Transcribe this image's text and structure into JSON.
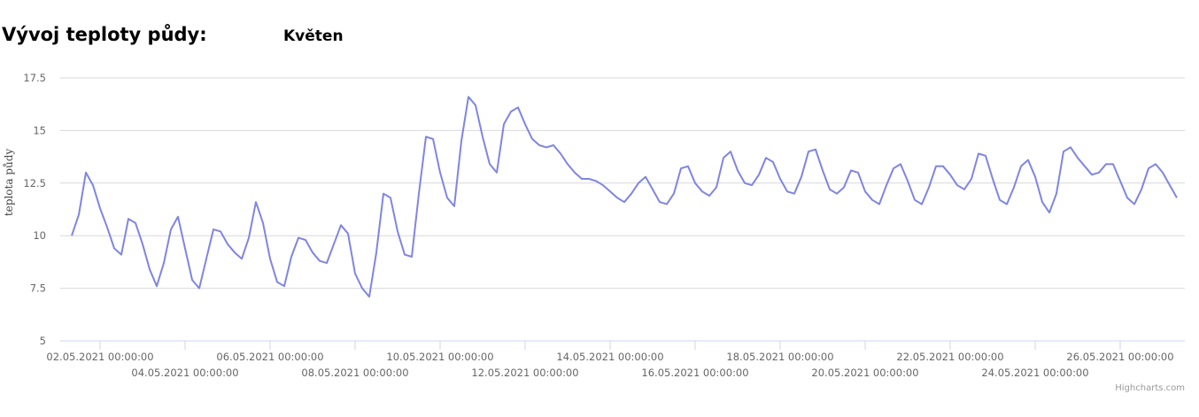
{
  "chart_data": {
    "type": "line",
    "title": "Vývoj teploty půdy:",
    "subtitle": "Květen",
    "y_label": "teplota půdy",
    "credits": "Highcharts.com",
    "color": "#7f85e3",
    "grid": true,
    "ylim": [
      5,
      17.5
    ],
    "yticks": [
      5,
      7.5,
      10,
      12.5,
      15,
      17.5
    ],
    "xlim": [
      "01.05.2021 01:30:00",
      "27.05.2021 12:30:00"
    ],
    "xticks": [
      "02.05.2021 00:00:00",
      "04.05.2021 00:00:00",
      "06.05.2021 00:00:00",
      "08.05.2021 00:00:00",
      "10.05.2021 00:00:00",
      "12.05.2021 00:00:00",
      "14.05.2021 00:00:00",
      "16.05.2021 00:00:00",
      "18.05.2021 00:00:00",
      "20.05.2021 00:00:00",
      "22.05.2021 00:00:00",
      "24.05.2021 00:00:00",
      "26.05.2021 00:00:00"
    ],
    "x": [
      "01.05.2021 08:00:00",
      "01.05.2021 12:00:00",
      "01.05.2021 16:00:00",
      "01.05.2021 20:00:00",
      "02.05.2021 00:00:00",
      "02.05.2021 04:00:00",
      "02.05.2021 08:00:00",
      "02.05.2021 12:00:00",
      "02.05.2021 16:00:00",
      "02.05.2021 20:00:00",
      "03.05.2021 00:00:00",
      "03.05.2021 04:00:00",
      "03.05.2021 08:00:00",
      "03.05.2021 12:00:00",
      "03.05.2021 16:00:00",
      "03.05.2021 20:00:00",
      "04.05.2021 00:00:00",
      "04.05.2021 04:00:00",
      "04.05.2021 08:00:00",
      "04.05.2021 12:00:00",
      "04.05.2021 16:00:00",
      "04.05.2021 20:00:00",
      "05.05.2021 00:00:00",
      "05.05.2021 04:00:00",
      "05.05.2021 08:00:00",
      "05.05.2021 12:00:00",
      "05.05.2021 16:00:00",
      "05.05.2021 20:00:00",
      "06.05.2021 00:00:00",
      "06.05.2021 04:00:00",
      "06.05.2021 08:00:00",
      "06.05.2021 12:00:00",
      "06.05.2021 16:00:00",
      "06.05.2021 20:00:00",
      "07.05.2021 00:00:00",
      "07.05.2021 04:00:00",
      "07.05.2021 08:00:00",
      "07.05.2021 12:00:00",
      "07.05.2021 16:00:00",
      "07.05.2021 20:00:00",
      "08.05.2021 00:00:00",
      "08.05.2021 04:00:00",
      "08.05.2021 08:00:00",
      "08.05.2021 12:00:00",
      "08.05.2021 16:00:00",
      "08.05.2021 20:00:00",
      "09.05.2021 00:00:00",
      "09.05.2021 04:00:00",
      "09.05.2021 08:00:00",
      "09.05.2021 12:00:00",
      "09.05.2021 16:00:00",
      "09.05.2021 20:00:00",
      "10.05.2021 00:00:00",
      "10.05.2021 04:00:00",
      "10.05.2021 08:00:00",
      "10.05.2021 12:00:00",
      "10.05.2021 16:00:00",
      "10.05.2021 20:00:00",
      "11.05.2021 00:00:00",
      "11.05.2021 04:00:00",
      "11.05.2021 08:00:00",
      "11.05.2021 12:00:00",
      "11.05.2021 16:00:00",
      "11.05.2021 20:00:00",
      "12.05.2021 00:00:00",
      "12.05.2021 04:00:00",
      "12.05.2021 08:00:00",
      "12.05.2021 12:00:00",
      "12.05.2021 16:00:00",
      "12.05.2021 20:00:00",
      "13.05.2021 00:00:00",
      "13.05.2021 04:00:00",
      "13.05.2021 08:00:00",
      "13.05.2021 12:00:00",
      "13.05.2021 16:00:00",
      "13.05.2021 20:00:00",
      "14.05.2021 00:00:00",
      "14.05.2021 04:00:00",
      "14.05.2021 08:00:00",
      "14.05.2021 12:00:00",
      "14.05.2021 16:00:00",
      "14.05.2021 20:00:00",
      "15.05.2021 00:00:00",
      "15.05.2021 04:00:00",
      "15.05.2021 08:00:00",
      "15.05.2021 12:00:00",
      "15.05.2021 16:00:00",
      "15.05.2021 20:00:00",
      "16.05.2021 00:00:00",
      "16.05.2021 04:00:00",
      "16.05.2021 08:00:00",
      "16.05.2021 12:00:00",
      "16.05.2021 16:00:00",
      "16.05.2021 20:00:00",
      "17.05.2021 00:00:00",
      "17.05.2021 04:00:00",
      "17.05.2021 08:00:00",
      "17.05.2021 12:00:00",
      "17.05.2021 16:00:00",
      "17.05.2021 20:00:00",
      "18.05.2021 00:00:00",
      "18.05.2021 04:00:00",
      "18.05.2021 08:00:00",
      "18.05.2021 12:00:00",
      "18.05.2021 16:00:00",
      "18.05.2021 20:00:00",
      "19.05.2021 00:00:00",
      "19.05.2021 04:00:00",
      "19.05.2021 08:00:00",
      "19.05.2021 12:00:00",
      "19.05.2021 16:00:00",
      "19.05.2021 20:00:00",
      "20.05.2021 00:00:00",
      "20.05.2021 04:00:00",
      "20.05.2021 08:00:00",
      "20.05.2021 12:00:00",
      "20.05.2021 16:00:00",
      "20.05.2021 20:00:00",
      "21.05.2021 00:00:00",
      "21.05.2021 04:00:00",
      "21.05.2021 08:00:00",
      "21.05.2021 12:00:00",
      "21.05.2021 16:00:00",
      "21.05.2021 20:00:00",
      "22.05.2021 00:00:00",
      "22.05.2021 04:00:00",
      "22.05.2021 08:00:00",
      "22.05.2021 12:00:00",
      "22.05.2021 16:00:00",
      "22.05.2021 20:00:00",
      "23.05.2021 00:00:00",
      "23.05.2021 04:00:00",
      "23.05.2021 08:00:00",
      "23.05.2021 12:00:00",
      "23.05.2021 16:00:00",
      "23.05.2021 20:00:00",
      "24.05.2021 00:00:00",
      "24.05.2021 04:00:00",
      "24.05.2021 08:00:00",
      "24.05.2021 12:00:00",
      "24.05.2021 16:00:00",
      "24.05.2021 20:00:00",
      "25.05.2021 00:00:00",
      "25.05.2021 04:00:00",
      "25.05.2021 08:00:00",
      "25.05.2021 12:00:00",
      "25.05.2021 16:00:00",
      "25.05.2021 20:00:00",
      "26.05.2021 00:00:00",
      "26.05.2021 04:00:00",
      "26.05.2021 08:00:00",
      "26.05.2021 12:00:00",
      "26.05.2021 16:00:00",
      "26.05.2021 20:00:00",
      "27.05.2021 00:00:00",
      "27.05.2021 04:00:00",
      "27.05.2021 08:00:00"
    ],
    "values": [
      10.0,
      11.0,
      13.0,
      12.4,
      11.3,
      10.4,
      9.4,
      9.1,
      10.8,
      10.6,
      9.6,
      8.4,
      7.6,
      8.7,
      10.3,
      10.9,
      9.4,
      7.9,
      7.5,
      8.9,
      10.3,
      10.2,
      9.6,
      9.2,
      8.9,
      9.9,
      11.6,
      10.6,
      8.9,
      7.8,
      7.6,
      9.0,
      9.9,
      9.8,
      9.2,
      8.8,
      8.7,
      9.6,
      10.5,
      10.1,
      8.2,
      7.5,
      7.1,
      9.2,
      12.0,
      11.8,
      10.2,
      9.1,
      9.0,
      12.0,
      14.7,
      14.6,
      13.0,
      11.8,
      11.4,
      14.5,
      16.6,
      16.2,
      14.7,
      13.4,
      13.0,
      15.3,
      15.9,
      16.1,
      15.3,
      14.6,
      14.3,
      14.2,
      14.3,
      13.9,
      13.4,
      13.0,
      12.7,
      12.7,
      12.6,
      12.4,
      12.1,
      11.8,
      11.6,
      12.0,
      12.5,
      12.8,
      12.2,
      11.6,
      11.5,
      12.0,
      13.2,
      13.3,
      12.5,
      12.1,
      11.9,
      12.3,
      13.7,
      14.0,
      13.1,
      12.5,
      12.4,
      12.9,
      13.7,
      13.5,
      12.7,
      12.1,
      12.0,
      12.8,
      14.0,
      14.1,
      13.1,
      12.2,
      12.0,
      12.3,
      13.1,
      13.0,
      12.1,
      11.7,
      11.5,
      12.4,
      13.2,
      13.4,
      12.6,
      11.7,
      11.5,
      12.3,
      13.3,
      13.3,
      12.9,
      12.4,
      12.2,
      12.7,
      13.9,
      13.8,
      12.7,
      11.7,
      11.5,
      12.3,
      13.3,
      13.6,
      12.8,
      11.6,
      11.1,
      12.0,
      14.0,
      14.2,
      13.7,
      13.3,
      12.9,
      13.0,
      13.4,
      13.4,
      12.6,
      11.8,
      11.5,
      12.2,
      13.2,
      13.4,
      13.0,
      12.4,
      11.8
    ]
  }
}
